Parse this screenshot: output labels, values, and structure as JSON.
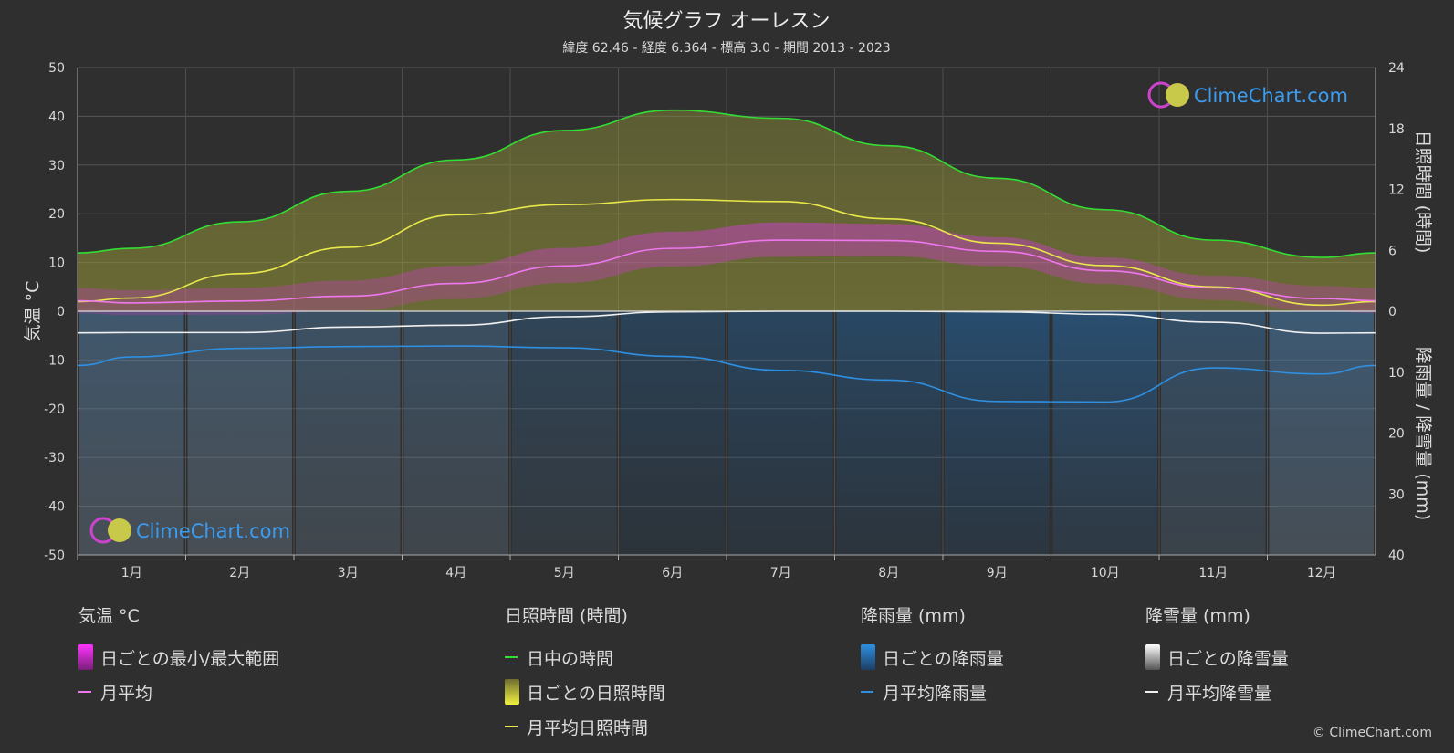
{
  "title": "気候グラフ オーレスン",
  "subtitle": "緯度 62.46 - 経度 6.364 - 標高 3.0 - 期間 2013 - 2023",
  "watermark": "ClimeChart.com",
  "copyright": "© ClimeChart.com",
  "colors": {
    "background": "#2f2f2f",
    "daylight": "#33dd33",
    "sunshine_line": "#e8e84a",
    "temp_avg": "#ee77ee",
    "rain_line": "#2f8fe0",
    "snow_line": "#f0f0f0",
    "brand": "#3b9cf0"
  },
  "legend": {
    "temperature": {
      "title": "気温 °C",
      "range_label": "日ごとの最小/最大範囲",
      "avg_label": "月平均"
    },
    "sunshine": {
      "title": "日照時間 (時間)",
      "daylight_label": "日中の時間",
      "daily_label": "日ごとの日照時間",
      "avg_label": "月平均日照時間"
    },
    "rain": {
      "title": "降雨量 (mm)",
      "daily_label": "日ごとの降雨量",
      "avg_label": "月平均降雨量"
    },
    "snow": {
      "title": "降雪量 (mm)",
      "daily_label": "日ごとの降雪量",
      "avg_label": "月平均降雪量"
    }
  },
  "chart_data": {
    "type": "line",
    "categories": [
      "1月",
      "2月",
      "3月",
      "4月",
      "5月",
      "6月",
      "7月",
      "8月",
      "9月",
      "10月",
      "11月",
      "12月"
    ],
    "left_axis": {
      "label": "気温 °C",
      "range": [
        -50,
        50
      ],
      "ticks": [
        50,
        40,
        30,
        20,
        10,
        0,
        -10,
        -20,
        -30,
        -40,
        -50
      ]
    },
    "right_axis_top": {
      "label": "日照時間 (時間)",
      "range": [
        0,
        24
      ],
      "ticks": [
        24,
        18,
        12,
        6,
        0
      ]
    },
    "right_axis_bottom": {
      "label": "降雨量 / 降雪量 (mm)",
      "range": [
        0,
        40
      ],
      "ticks": [
        0,
        10,
        20,
        30,
        40
      ]
    },
    "grid": true,
    "series": [
      {
        "name": "日中の時間",
        "unit": "hours",
        "values": [
          6.2,
          8.8,
          11.8,
          14.9,
          17.8,
          19.8,
          19.0,
          16.3,
          13.1,
          10.0,
          7.0,
          5.3
        ]
      },
      {
        "name": "月平均日照時間",
        "unit": "hours",
        "values": [
          1.3,
          3.7,
          6.3,
          9.5,
          10.5,
          11.0,
          10.8,
          9.1,
          6.7,
          4.5,
          2.4,
          0.6
        ]
      },
      {
        "name": "月平均",
        "unit": "°C",
        "values": [
          1.7,
          2.1,
          3.1,
          5.7,
          9.3,
          12.9,
          14.6,
          14.5,
          12.3,
          8.3,
          4.8,
          2.6
        ]
      },
      {
        "name": "月平均降雨量",
        "unit": "mm",
        "values": [
          7.5,
          6.1,
          5.8,
          5.7,
          6.0,
          7.4,
          9.7,
          11.3,
          14.8,
          14.9,
          9.3,
          10.3
        ]
      },
      {
        "name": "月平均降雪量",
        "unit": "mm",
        "values": [
          3.5,
          3.5,
          2.6,
          2.3,
          0.9,
          0.1,
          0.0,
          0.0,
          0.1,
          0.5,
          1.8,
          3.6
        ]
      },
      {
        "name": "日ごとの最小/最大範囲",
        "unit": "°C",
        "min": [
          -0.8,
          -0.7,
          0.1,
          2.5,
          5.8,
          9.2,
          11.2,
          11.3,
          9.3,
          5.6,
          2.3,
          0.0
        ],
        "max": [
          4.3,
          4.8,
          6.3,
          9.3,
          13.0,
          16.3,
          18.2,
          17.9,
          15.2,
          11.0,
          7.3,
          5.2
        ]
      }
    ]
  }
}
